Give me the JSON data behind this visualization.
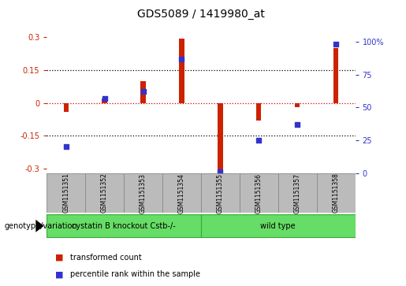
{
  "title": "GDS5089 / 1419980_at",
  "samples": [
    "GSM1151351",
    "GSM1151352",
    "GSM1151353",
    "GSM1151354",
    "GSM1151355",
    "GSM1151356",
    "GSM1151357",
    "GSM1151358"
  ],
  "red_values": [
    -0.04,
    0.02,
    0.1,
    0.295,
    -0.305,
    -0.08,
    -0.02,
    0.25
  ],
  "blue_values": [
    20,
    57,
    62,
    87,
    1,
    25,
    37,
    98
  ],
  "group1_label": "cystatin B knockout Cstb-/-",
  "group2_label": "wild type",
  "genotype_label": "genotype/variation",
  "legend_red": "transformed count",
  "legend_blue": "percentile rank within the sample",
  "ylim_left": [
    -0.32,
    0.32
  ],
  "ylim_right": [
    0,
    106.67
  ],
  "yticks_left": [
    -0.3,
    -0.15,
    0.0,
    0.15,
    0.3
  ],
  "ytick_labels_left": [
    "-0.3",
    "-0.15",
    "0",
    "0.15",
    "0.3"
  ],
  "yticks_right": [
    0,
    25,
    50,
    75,
    100
  ],
  "ytick_labels_right": [
    "0",
    "25",
    "50",
    "75",
    "100%"
  ],
  "hlines": [
    -0.15,
    0.0,
    0.15
  ],
  "hline_zero_color": "#cc0000",
  "hline_other_color": "black",
  "bar_color": "#cc2200",
  "dot_color": "#3333cc",
  "group_color": "#66dd66",
  "group_edge_color": "#33aa33",
  "box_color": "#bbbbbb",
  "box_edge_color": "#888888",
  "title_fontsize": 10,
  "tick_fontsize": 7,
  "bar_width": 0.13,
  "dot_size": 22
}
